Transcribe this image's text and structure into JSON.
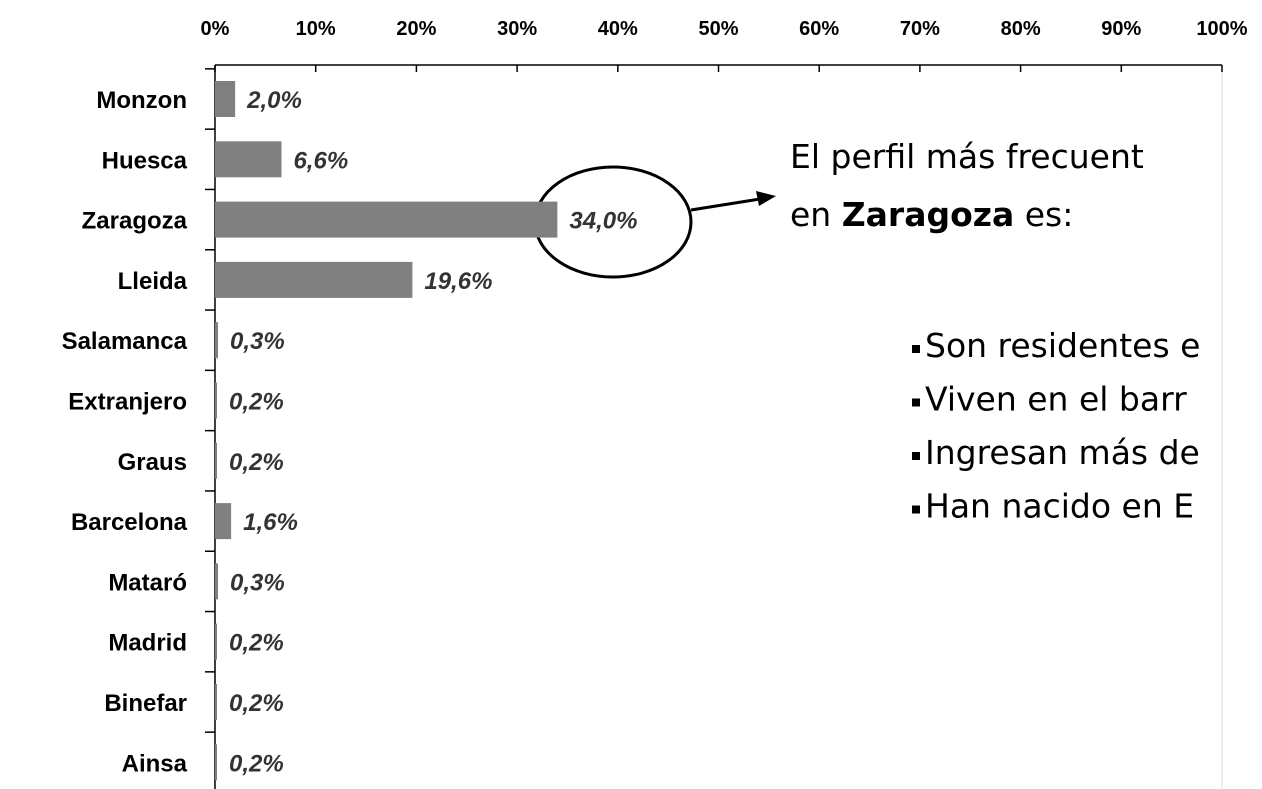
{
  "chart_data": {
    "type": "bar",
    "orientation": "horizontal",
    "categories": [
      "Monzon",
      "Huesca",
      "Zaragoza",
      "Lleida",
      "Salamanca",
      "Extranjero",
      "Graus",
      "Barcelona",
      "Mataró",
      "Madrid",
      "Binefar",
      "Ainsa"
    ],
    "values": [
      2.0,
      6.6,
      34.0,
      19.6,
      0.3,
      0.2,
      0.2,
      1.6,
      0.3,
      0.2,
      0.2,
      0.2
    ],
    "value_labels": [
      "2,0%",
      "6,6%",
      "34,0%",
      "19,6%",
      "0,3%",
      "0,2%",
      "0,2%",
      "1,6%",
      "0,3%",
      "0,2%",
      "0,2%",
      "0,2%"
    ],
    "color": "#808080",
    "xlim": [
      0,
      100
    ],
    "xticks": [
      {
        "value": 0,
        "label": "0%"
      },
      {
        "value": 10,
        "label": "10%"
      },
      {
        "value": 20,
        "label": "20%"
      },
      {
        "value": 30,
        "label": "30%"
      },
      {
        "value": 40,
        "label": "40%"
      },
      {
        "value": 50,
        "label": "50%"
      },
      {
        "value": 60,
        "label": "60%"
      },
      {
        "value": 70,
        "label": "70%"
      },
      {
        "value": 80,
        "label": "80%"
      },
      {
        "value": 90,
        "label": "90%"
      },
      {
        "value": 100,
        "label": "100%"
      }
    ],
    "annotation": {
      "line1": "El perfil más frecuent",
      "line2_prefix": "en ",
      "line2_bold": "Zaragoza",
      "line2_suffix": " es:",
      "bullets": [
        "Son residentes e",
        "Viven en el barr",
        "Ingresan más de",
        "Han nacido en E"
      ]
    }
  }
}
